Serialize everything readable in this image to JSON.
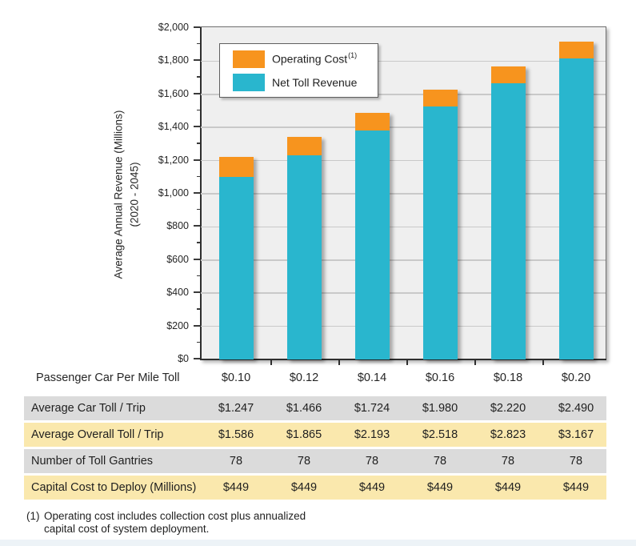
{
  "chart": {
    "y_axis_title_line1": "Average Annual Revenue (Millions)",
    "y_axis_title_line2": "(2020 - 2045)",
    "x_axis_caption": "Passenger Car Per Mile Toll"
  },
  "legend": {
    "items": [
      {
        "label": "Operating Cost",
        "superscript": "(1)",
        "color": "#F7941E"
      },
      {
        "label": "Net Toll Revenue",
        "superscript": "",
        "color": "#29B6CE"
      }
    ]
  },
  "chart_data": {
    "type": "bar",
    "stacked": true,
    "title": "",
    "xlabel": "Passenger Car Per Mile Toll",
    "ylabel": "Average Annual Revenue (Millions) (2020 - 2045)",
    "categories": [
      "$0.10",
      "$0.12",
      "$0.14",
      "$0.16",
      "$0.18",
      "$0.20"
    ],
    "series": [
      {
        "name": "Net Toll Revenue",
        "color": "#29B6CE",
        "values": [
          1100,
          1230,
          1380,
          1525,
          1665,
          1815
        ]
      },
      {
        "name": "Operating Cost",
        "color": "#F7941E",
        "values": [
          120,
          115,
          110,
          105,
          105,
          105
        ]
      }
    ],
    "stack_totals": [
      1220,
      1345,
      1490,
      1630,
      1770,
      1920
    ],
    "ylim": [
      0,
      2000
    ],
    "ytick_step": 200,
    "ytick_minor_step": 100,
    "ytick_labels": [
      "$0",
      "$200",
      "$400",
      "$600",
      "$800",
      "$1,000",
      "$1,200",
      "$1,400",
      "$1,600",
      "$1,800",
      "$2,000"
    ],
    "grid": true,
    "legend_position": "top-left-inside"
  },
  "table": {
    "rows": [
      {
        "label": "Average Car Toll / Trip",
        "bg": "#DBDBDB",
        "values": [
          "$1.247",
          "$1.466",
          "$1.724",
          "$1.980",
          "$2.220",
          "$2.490"
        ]
      },
      {
        "label": "Average Overall Toll / Trip",
        "bg": "#FAE8AD",
        "values": [
          "$1.586",
          "$1.865",
          "$2.193",
          "$2.518",
          "$2.823",
          "$3.167"
        ]
      },
      {
        "label": "Number of Toll Gantries",
        "bg": "#DBDBDB",
        "values": [
          "78",
          "78",
          "78",
          "78",
          "78",
          "78"
        ]
      },
      {
        "label": "Capital Cost to Deploy (Millions)",
        "bg": "#FAE8AD",
        "values": [
          "$449",
          "$449",
          "$449",
          "$449",
          "$449",
          "$449"
        ]
      }
    ]
  },
  "footnote": {
    "marker": "(1)",
    "text": "Operating cost includes collection cost plus annualized capital cost of system deployment."
  },
  "colors": {
    "operating_cost": "#F7941E",
    "net_toll_revenue": "#29B6CE",
    "plot_background": "#EFEFEF",
    "gridline": "#C9C9C9",
    "table_gray": "#DBDBDB",
    "table_yellow": "#FAE8AD",
    "bottom_strip": "#EDF3F7"
  }
}
